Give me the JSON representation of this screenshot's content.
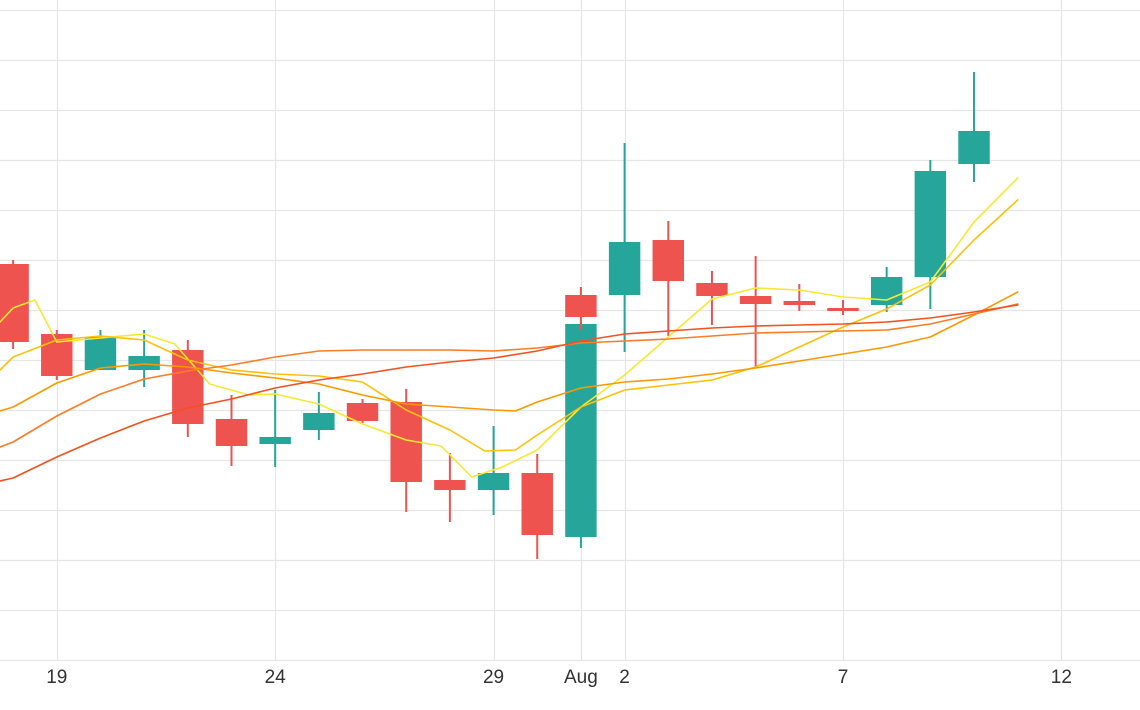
{
  "chart_data": {
    "type": "candlestick",
    "title": "",
    "xlabel": "",
    "ylabel": "",
    "grid": true,
    "y_axis_labels_visible": false,
    "x_ticks": [
      {
        "date": "07-19",
        "label": "19"
      },
      {
        "date": "07-24",
        "label": "24"
      },
      {
        "date": "07-29",
        "label": "29"
      },
      {
        "date": "08-01",
        "label": "Aug"
      },
      {
        "date": "08-02",
        "label": "2"
      },
      {
        "date": "08-07",
        "label": "7"
      },
      {
        "date": "08-12",
        "label": "12"
      }
    ],
    "x_range": [
      "07-17.7",
      "08-13.8"
    ],
    "y_range": [
      0,
      66
    ],
    "colors": {
      "up": "#26a69a",
      "down": "#ef5350",
      "grid": "#e6e6e6"
    },
    "candles": [
      {
        "date": "07-18",
        "open": 39.6,
        "high": 40.0,
        "low": 31.1,
        "close": 31.8
      },
      {
        "date": "07-19",
        "open": 32.6,
        "high": 33.0,
        "low": 28.0,
        "close": 28.4
      },
      {
        "date": "07-20",
        "open": 29.0,
        "high": 33.0,
        "low": 29.0,
        "close": 32.3
      },
      {
        "date": "07-21",
        "open": 29.0,
        "high": 33.0,
        "low": 27.3,
        "close": 30.4
      },
      {
        "date": "07-22",
        "open": 31.0,
        "high": 32.0,
        "low": 22.3,
        "close": 23.6
      },
      {
        "date": "07-23",
        "open": 24.1,
        "high": 26.5,
        "low": 19.4,
        "close": 21.4
      },
      {
        "date": "07-24",
        "open": 21.6,
        "high": 27.0,
        "low": 19.3,
        "close": 22.3
      },
      {
        "date": "07-25",
        "open": 23.0,
        "high": 26.8,
        "low": 22.0,
        "close": 24.7
      },
      {
        "date": "07-26",
        "open": 25.7,
        "high": 26.1,
        "low": 23.7,
        "close": 23.9
      },
      {
        "date": "07-27",
        "open": 25.8,
        "high": 27.1,
        "low": 14.8,
        "close": 17.8
      },
      {
        "date": "07-28",
        "open": 18.0,
        "high": 20.7,
        "low": 13.8,
        "close": 17.0
      },
      {
        "date": "07-29",
        "open": 17.0,
        "high": 23.4,
        "low": 14.5,
        "close": 18.7
      },
      {
        "date": "07-30",
        "open": 18.7,
        "high": 20.6,
        "low": 10.1,
        "close": 12.5
      },
      {
        "date": "07-31",
        "open": 12.3,
        "high": 33.8,
        "low": 11.2,
        "close": 33.6
      },
      {
        "date": "08-01",
        "open": 36.5,
        "high": 37.3,
        "low": 33.0,
        "close": 34.3
      },
      {
        "date": "08-02",
        "open": 36.5,
        "high": 51.7,
        "low": 30.8,
        "close": 41.8
      },
      {
        "date": "08-03",
        "open": 42.0,
        "high": 43.9,
        "low": 32.4,
        "close": 37.9
      },
      {
        "date": "08-04",
        "open": 37.7,
        "high": 38.9,
        "low": 33.5,
        "close": 36.4
      },
      {
        "date": "08-05",
        "open": 36.4,
        "high": 40.4,
        "low": 29.3,
        "close": 35.6
      },
      {
        "date": "08-06",
        "open": 35.9,
        "high": 37.6,
        "low": 34.9,
        "close": 35.5
      },
      {
        "date": "08-07",
        "open": 35.2,
        "high": 36.0,
        "low": 34.5,
        "close": 34.9
      },
      {
        "date": "08-08",
        "open": 35.5,
        "high": 39.3,
        "low": 34.8,
        "close": 38.3
      },
      {
        "date": "08-09",
        "open": 38.3,
        "high": 50.0,
        "low": 35.1,
        "close": 48.9
      },
      {
        "date": "08-10",
        "open": 49.6,
        "high": 58.8,
        "low": 47.8,
        "close": 52.9
      }
    ],
    "series": [
      {
        "color": "#f7e931",
        "width": 1.6,
        "values": [
          [
            -0.3,
            33.8
          ],
          [
            0,
            35.2
          ],
          [
            0.5,
            36.0
          ],
          [
            1,
            31.8
          ],
          [
            2,
            32.2
          ],
          [
            3,
            32.6
          ],
          [
            3.7,
            31.6
          ],
          [
            4.5,
            27.6
          ],
          [
            5.4,
            26.5
          ],
          [
            6,
            26.6
          ],
          [
            7,
            25.6
          ],
          [
            8,
            23.6
          ],
          [
            9,
            22.0
          ],
          [
            9.8,
            21.4
          ],
          [
            10.5,
            18.3
          ],
          [
            11.2,
            19.3
          ],
          [
            12,
            21.0
          ],
          [
            13,
            25.3
          ],
          [
            14,
            28.5
          ],
          [
            15,
            32.3
          ],
          [
            16,
            36.1
          ],
          [
            17,
            37.2
          ],
          [
            18,
            37.0
          ],
          [
            19,
            36.3
          ],
          [
            20,
            36.0
          ],
          [
            21,
            37.8
          ],
          [
            22,
            43.8
          ],
          [
            23,
            48.2
          ]
        ]
      },
      {
        "color": "#ffc107",
        "width": 1.6,
        "values": [
          [
            -0.3,
            29.0
          ],
          [
            0,
            30.3
          ],
          [
            1,
            32.0
          ],
          [
            2,
            32.4
          ],
          [
            3,
            32.0
          ],
          [
            4,
            30.0
          ],
          [
            5,
            29.0
          ],
          [
            6,
            28.6
          ],
          [
            7,
            28.4
          ],
          [
            8,
            27.8
          ],
          [
            9,
            25.0
          ],
          [
            10,
            23.0
          ],
          [
            10.8,
            20.9
          ],
          [
            11.5,
            21.0
          ],
          [
            12,
            22.5
          ],
          [
            13,
            25.3
          ],
          [
            14,
            27.0
          ],
          [
            15,
            27.5
          ],
          [
            16,
            28.0
          ],
          [
            17,
            29.3
          ],
          [
            18,
            31.3
          ],
          [
            19,
            33.3
          ],
          [
            20,
            35.1
          ],
          [
            21,
            37.5
          ],
          [
            22,
            42.0
          ],
          [
            23,
            46.0
          ]
        ]
      },
      {
        "color": "#ff9800",
        "width": 1.6,
        "values": [
          [
            -0.3,
            24.9
          ],
          [
            0,
            25.3
          ],
          [
            1,
            27.7
          ],
          [
            2,
            29.2
          ],
          [
            3,
            29.6
          ],
          [
            4,
            29.3
          ],
          [
            5,
            28.7
          ],
          [
            6,
            28.2
          ],
          [
            7,
            27.6
          ],
          [
            8,
            26.5
          ],
          [
            9,
            25.6
          ],
          [
            10,
            25.3
          ],
          [
            11,
            25.0
          ],
          [
            11.5,
            24.9
          ],
          [
            12,
            25.8
          ],
          [
            13,
            27.2
          ],
          [
            14,
            27.8
          ],
          [
            15,
            28.1
          ],
          [
            16,
            28.6
          ],
          [
            17,
            29.2
          ],
          [
            18,
            29.9
          ],
          [
            19,
            30.6
          ],
          [
            20,
            31.3
          ],
          [
            21,
            32.3
          ],
          [
            22,
            34.5
          ],
          [
            23,
            36.8
          ]
        ]
      },
      {
        "color": "#ff7b25",
        "width": 1.6,
        "values": [
          [
            -0.3,
            21.3
          ],
          [
            0,
            21.8
          ],
          [
            1,
            24.4
          ],
          [
            2,
            26.6
          ],
          [
            3,
            28.1
          ],
          [
            4,
            28.9
          ],
          [
            5,
            29.5
          ],
          [
            6,
            30.3
          ],
          [
            7,
            30.9
          ],
          [
            8,
            31.0
          ],
          [
            9,
            31.0
          ],
          [
            10,
            31.0
          ],
          [
            11,
            30.9
          ],
          [
            12,
            31.2
          ],
          [
            13,
            31.7
          ],
          [
            14,
            31.9
          ],
          [
            15,
            32.1
          ],
          [
            16,
            32.4
          ],
          [
            17,
            32.7
          ],
          [
            18,
            32.8
          ],
          [
            19,
            32.9
          ],
          [
            20,
            33.0
          ],
          [
            21,
            33.6
          ],
          [
            22,
            34.6
          ],
          [
            23,
            35.6
          ]
        ]
      },
      {
        "color": "#f4511e",
        "width": 1.6,
        "values": [
          [
            -0.3,
            17.9
          ],
          [
            0,
            18.2
          ],
          [
            1,
            20.3
          ],
          [
            2,
            22.2
          ],
          [
            3,
            23.9
          ],
          [
            4,
            25.2
          ],
          [
            5,
            26.1
          ],
          [
            6,
            27.2
          ],
          [
            7,
            28.0
          ],
          [
            8,
            28.6
          ],
          [
            9,
            29.3
          ],
          [
            10,
            29.8
          ],
          [
            11,
            30.2
          ],
          [
            12,
            30.9
          ],
          [
            13,
            31.9
          ],
          [
            14,
            32.6
          ],
          [
            15,
            32.9
          ],
          [
            16,
            33.2
          ],
          [
            17,
            33.4
          ],
          [
            18,
            33.5
          ],
          [
            19,
            33.6
          ],
          [
            20,
            33.8
          ],
          [
            21,
            34.2
          ],
          [
            22,
            34.8
          ],
          [
            23,
            35.5
          ]
        ]
      }
    ]
  }
}
